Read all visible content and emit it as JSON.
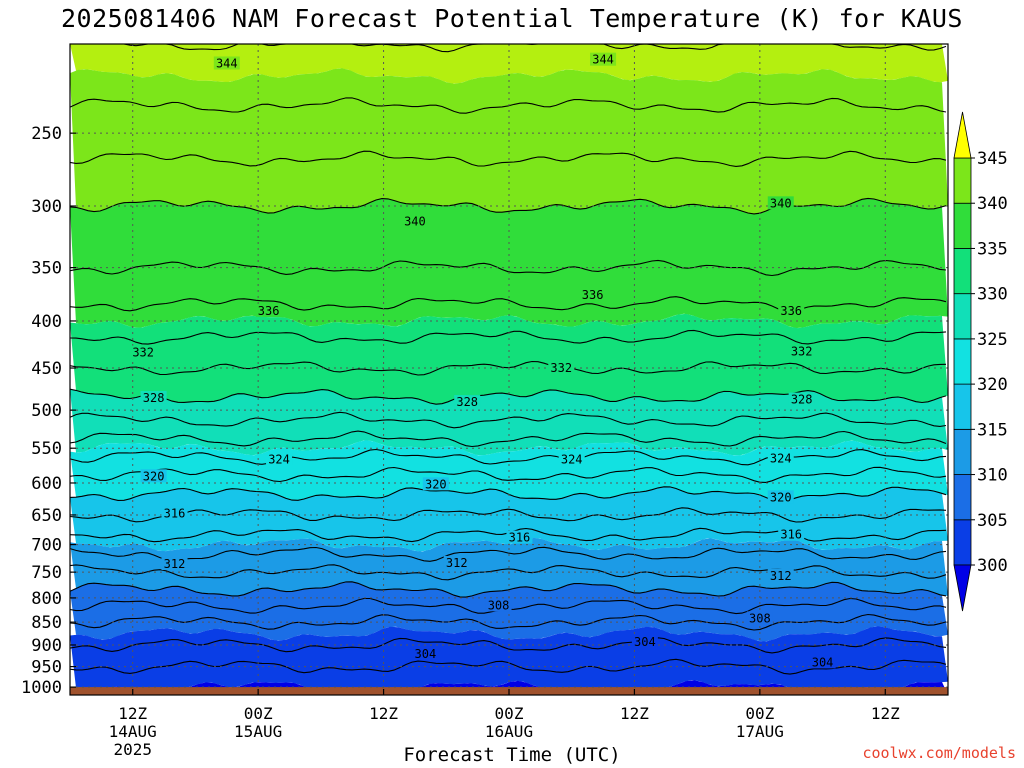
{
  "chart_data": {
    "type": "heatmap",
    "title": "2025081406 NAM Forecast Potential Temperature (K) for KAUS",
    "xlabel": "Forecast Time (UTC)",
    "ylabel": "",
    "y_axis": {
      "scale": "log",
      "inverted": true,
      "range": [
        200,
        1020
      ],
      "ticks": [
        250,
        300,
        350,
        400,
        450,
        500,
        550,
        600,
        650,
        700,
        750,
        800,
        850,
        900,
        950,
        1000
      ]
    },
    "x_axis": {
      "range": [
        "2025-08-14T06:00Z",
        "2025-08-17T18:00Z"
      ],
      "ticks": [
        {
          "time": "2025-08-14T12:00Z",
          "lines": [
            "12Z",
            "14AUG",
            "2025"
          ]
        },
        {
          "time": "2025-08-15T00:00Z",
          "lines": [
            "00Z",
            "15AUG"
          ]
        },
        {
          "time": "2025-08-15T12:00Z",
          "lines": [
            "12Z"
          ]
        },
        {
          "time": "2025-08-16T00:00Z",
          "lines": [
            "00Z",
            "16AUG"
          ]
        },
        {
          "time": "2025-08-16T12:00Z",
          "lines": [
            "12Z"
          ]
        },
        {
          "time": "2025-08-17T00:00Z",
          "lines": [
            "00Z",
            "17AUG"
          ]
        },
        {
          "time": "2025-08-17T12:00Z",
          "lines": [
            "12Z"
          ]
        }
      ]
    },
    "grid": true,
    "colorbar": {
      "labels": [
        300,
        305,
        310,
        315,
        320,
        325,
        330,
        335,
        340,
        345
      ],
      "extend": "both",
      "colors": [
        "#0000e6",
        "#0a3ee6",
        "#1b6ee6",
        "#1c9be6",
        "#17c5ea",
        "#12e1e1",
        "#11dfb8",
        "#12e07a",
        "#30dd3a",
        "#7ce61a",
        "#b4ef10",
        "#ebf50e",
        "#ffff00"
      ]
    },
    "levels_hpa": [
      250,
      300,
      350,
      400,
      450,
      500,
      550,
      600,
      650,
      700,
      750,
      800,
      850,
      900,
      950,
      1000
    ],
    "theta_k_by_level": [
      {
        "pressure": 250,
        "theta": 343
      },
      {
        "pressure": 300,
        "theta": 340
      },
      {
        "pressure": 350,
        "theta": 338
      },
      {
        "pressure": 400,
        "theta": 335
      },
      {
        "pressure": 450,
        "theta": 332
      },
      {
        "pressure": 500,
        "theta": 329
      },
      {
        "pressure": 550,
        "theta": 325
      },
      {
        "pressure": 600,
        "theta": 321
      },
      {
        "pressure": 650,
        "theta": 318
      },
      {
        "pressure": 700,
        "theta": 315
      },
      {
        "pressure": 750,
        "theta": 312
      },
      {
        "pressure": 800,
        "theta": 309
      },
      {
        "pressure": 850,
        "theta": 306
      },
      {
        "pressure": 900,
        "theta": 304
      },
      {
        "pressure": 950,
        "theta": 302
      },
      {
        "pressure": 1000,
        "theta": 302
      }
    ],
    "contour_labels": [
      {
        "value": "344",
        "time": "2025-08-14T21:00Z",
        "pressure": 210
      },
      {
        "value": "344",
        "time": "2025-08-16T09:00Z",
        "pressure": 208
      },
      {
        "value": "340",
        "time": "2025-08-15T15:00Z",
        "pressure": 312
      },
      {
        "value": "340",
        "time": "2025-08-17T02:00Z",
        "pressure": 298
      },
      {
        "value": "336",
        "time": "2025-08-15T01:00Z",
        "pressure": 390
      },
      {
        "value": "336",
        "time": "2025-08-16T08:00Z",
        "pressure": 375
      },
      {
        "value": "336",
        "time": "2025-08-17T03:00Z",
        "pressure": 390
      },
      {
        "value": "332",
        "time": "2025-08-14T13:00Z",
        "pressure": 433
      },
      {
        "value": "332",
        "time": "2025-08-16T05:00Z",
        "pressure": 450
      },
      {
        "value": "332",
        "time": "2025-08-17T04:00Z",
        "pressure": 432
      },
      {
        "value": "328",
        "time": "2025-08-14T14:00Z",
        "pressure": 485
      },
      {
        "value": "328",
        "time": "2025-08-15T20:00Z",
        "pressure": 490
      },
      {
        "value": "328",
        "time": "2025-08-17T04:00Z",
        "pressure": 487
      },
      {
        "value": "324",
        "time": "2025-08-15T02:00Z",
        "pressure": 566
      },
      {
        "value": "324",
        "time": "2025-08-16T06:00Z",
        "pressure": 566
      },
      {
        "value": "324",
        "time": "2025-08-17T02:00Z",
        "pressure": 564
      },
      {
        "value": "320",
        "time": "2025-08-14T14:00Z",
        "pressure": 590
      },
      {
        "value": "320",
        "time": "2025-08-15T17:00Z",
        "pressure": 602
      },
      {
        "value": "320",
        "time": "2025-08-17T02:00Z",
        "pressure": 622
      },
      {
        "value": "316",
        "time": "2025-08-14T16:00Z",
        "pressure": 648
      },
      {
        "value": "316",
        "time": "2025-08-16T01:00Z",
        "pressure": 688
      },
      {
        "value": "316",
        "time": "2025-08-17T03:00Z",
        "pressure": 683
      },
      {
        "value": "312",
        "time": "2025-08-14T16:00Z",
        "pressure": 735
      },
      {
        "value": "312",
        "time": "2025-08-15T19:00Z",
        "pressure": 733
      },
      {
        "value": "312",
        "time": "2025-08-17T02:00Z",
        "pressure": 757
      },
      {
        "value": "308",
        "time": "2025-08-15T23:00Z",
        "pressure": 815
      },
      {
        "value": "308",
        "time": "2025-08-17T00:00Z",
        "pressure": 842
      },
      {
        "value": "304",
        "time": "2025-08-15T16:00Z",
        "pressure": 920
      },
      {
        "value": "304",
        "time": "2025-08-16T13:00Z",
        "pressure": 893
      },
      {
        "value": "304",
        "time": "2025-08-17T06:00Z",
        "pressure": 940
      }
    ],
    "ground_below_hpa": 1000
  },
  "credit": "coolwx.com/models"
}
